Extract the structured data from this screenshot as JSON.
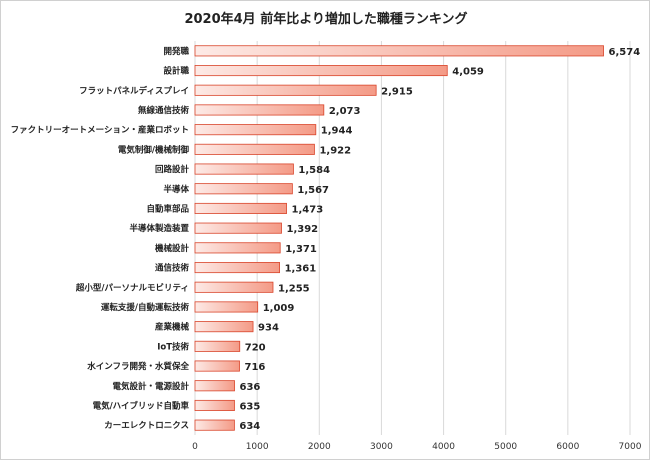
{
  "chart_data": {
    "type": "bar",
    "orientation": "horizontal",
    "title": "2020年4月 前年比より増加した職種ランキング",
    "xlabel": "",
    "ylabel": "",
    "xlim": [
      0,
      7000
    ],
    "x_ticks": [
      "0",
      "1000",
      "2000",
      "3000",
      "4000",
      "5000",
      "6000",
      "7000"
    ],
    "grid": true,
    "categories": [
      "開発職",
      "設計職",
      "フラットパネルディスプレイ",
      "無線通信技術",
      "ファクトリーオートメーション・産業ロボット",
      "電気制御/機械制御",
      "回路設計",
      "半導体",
      "自動車部品",
      "半導体製造装置",
      "機械設計",
      "通信技術",
      "超小型/パーソナルモビリティ",
      "運転支援/自動運転技術",
      "産業機械",
      "IoT技術",
      "水インフラ開発・水質保全",
      "電気設計・電源設計",
      "電気/ハイブリッド自動車",
      "カーエレクトロニクス"
    ],
    "values": [
      6574,
      4059,
      2915,
      2073,
      1944,
      1922,
      1584,
      1567,
      1473,
      1392,
      1371,
      1361,
      1255,
      1009,
      934,
      720,
      716,
      636,
      635,
      634
    ],
    "value_labels": [
      "6,574",
      "4,059",
      "2,915",
      "2,073",
      "1,944",
      "1,922",
      "1,584",
      "1,567",
      "1,473",
      "1,392",
      "1,371",
      "1,361",
      "1,255",
      "1,009",
      "934",
      "720",
      "716",
      "636",
      "635",
      "634"
    ],
    "colors": {
      "bar_light": "#fdeae6",
      "bar_dark": "#f49a86",
      "bar_edge": "#d9452b",
      "grid": "#d9d9d9"
    }
  }
}
